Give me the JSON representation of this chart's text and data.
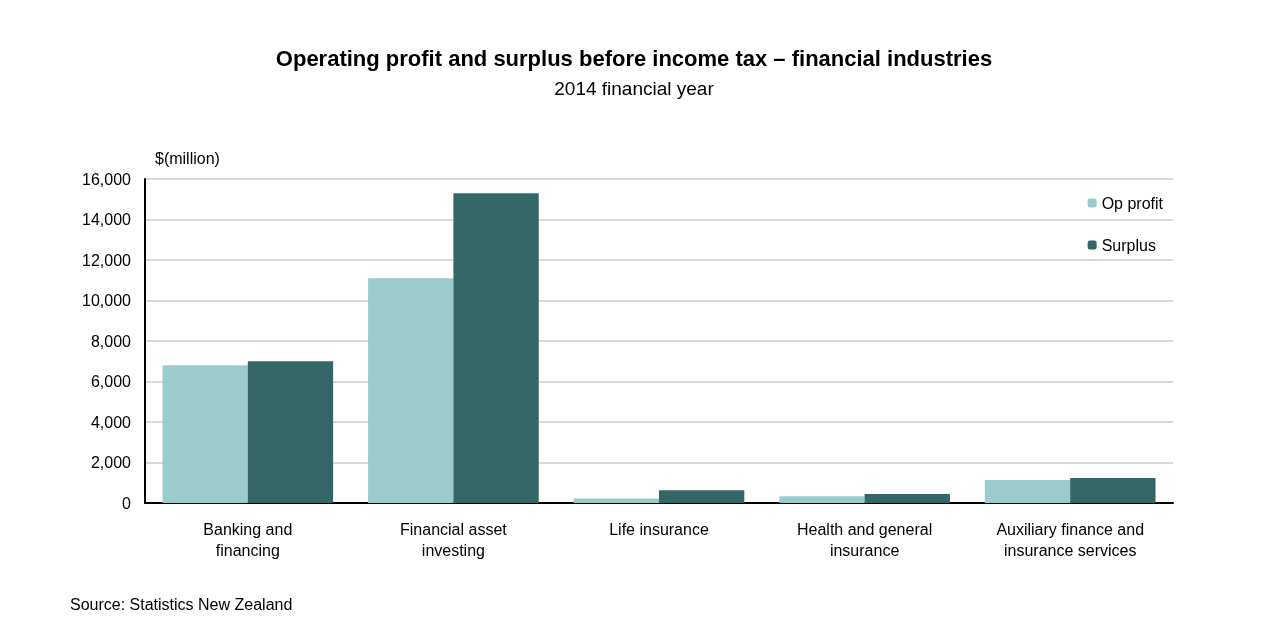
{
  "chart_data": {
    "type": "bar",
    "title": "Operating profit and surplus before income tax – financial industries",
    "subtitle": "2014 financial year",
    "ylabel": "$(million)",
    "categories": [
      "Banking and\nfinancing",
      "Financial asset\ninvesting",
      "Life insurance",
      "Health and general\ninsurance",
      "Auxiliary finance and\ninsurance services"
    ],
    "series": [
      {
        "name": "Op profit",
        "color": "#9ccbcc",
        "values": [
          6800,
          11100,
          220,
          330,
          1140
        ]
      },
      {
        "name": "Surplus",
        "color": "#336666",
        "values": [
          7000,
          15300,
          630,
          450,
          1240
        ]
      }
    ],
    "ylim": [
      0,
      16000
    ],
    "yticks": [
      {
        "value": 0,
        "label": "0"
      },
      {
        "value": 2000,
        "label": "2,000"
      },
      {
        "value": 4000,
        "label": "4,000"
      },
      {
        "value": 6000,
        "label": "6,000"
      },
      {
        "value": 8000,
        "label": "8,000"
      },
      {
        "value": 10000,
        "label": "10,000"
      },
      {
        "value": 12000,
        "label": "12,000"
      },
      {
        "value": 14000,
        "label": "14,000"
      },
      {
        "value": 16000,
        "label": "16,000"
      }
    ],
    "grid": "y",
    "legend": "top right",
    "annotations": [
      "Source: Statistics New Zealand"
    ]
  }
}
